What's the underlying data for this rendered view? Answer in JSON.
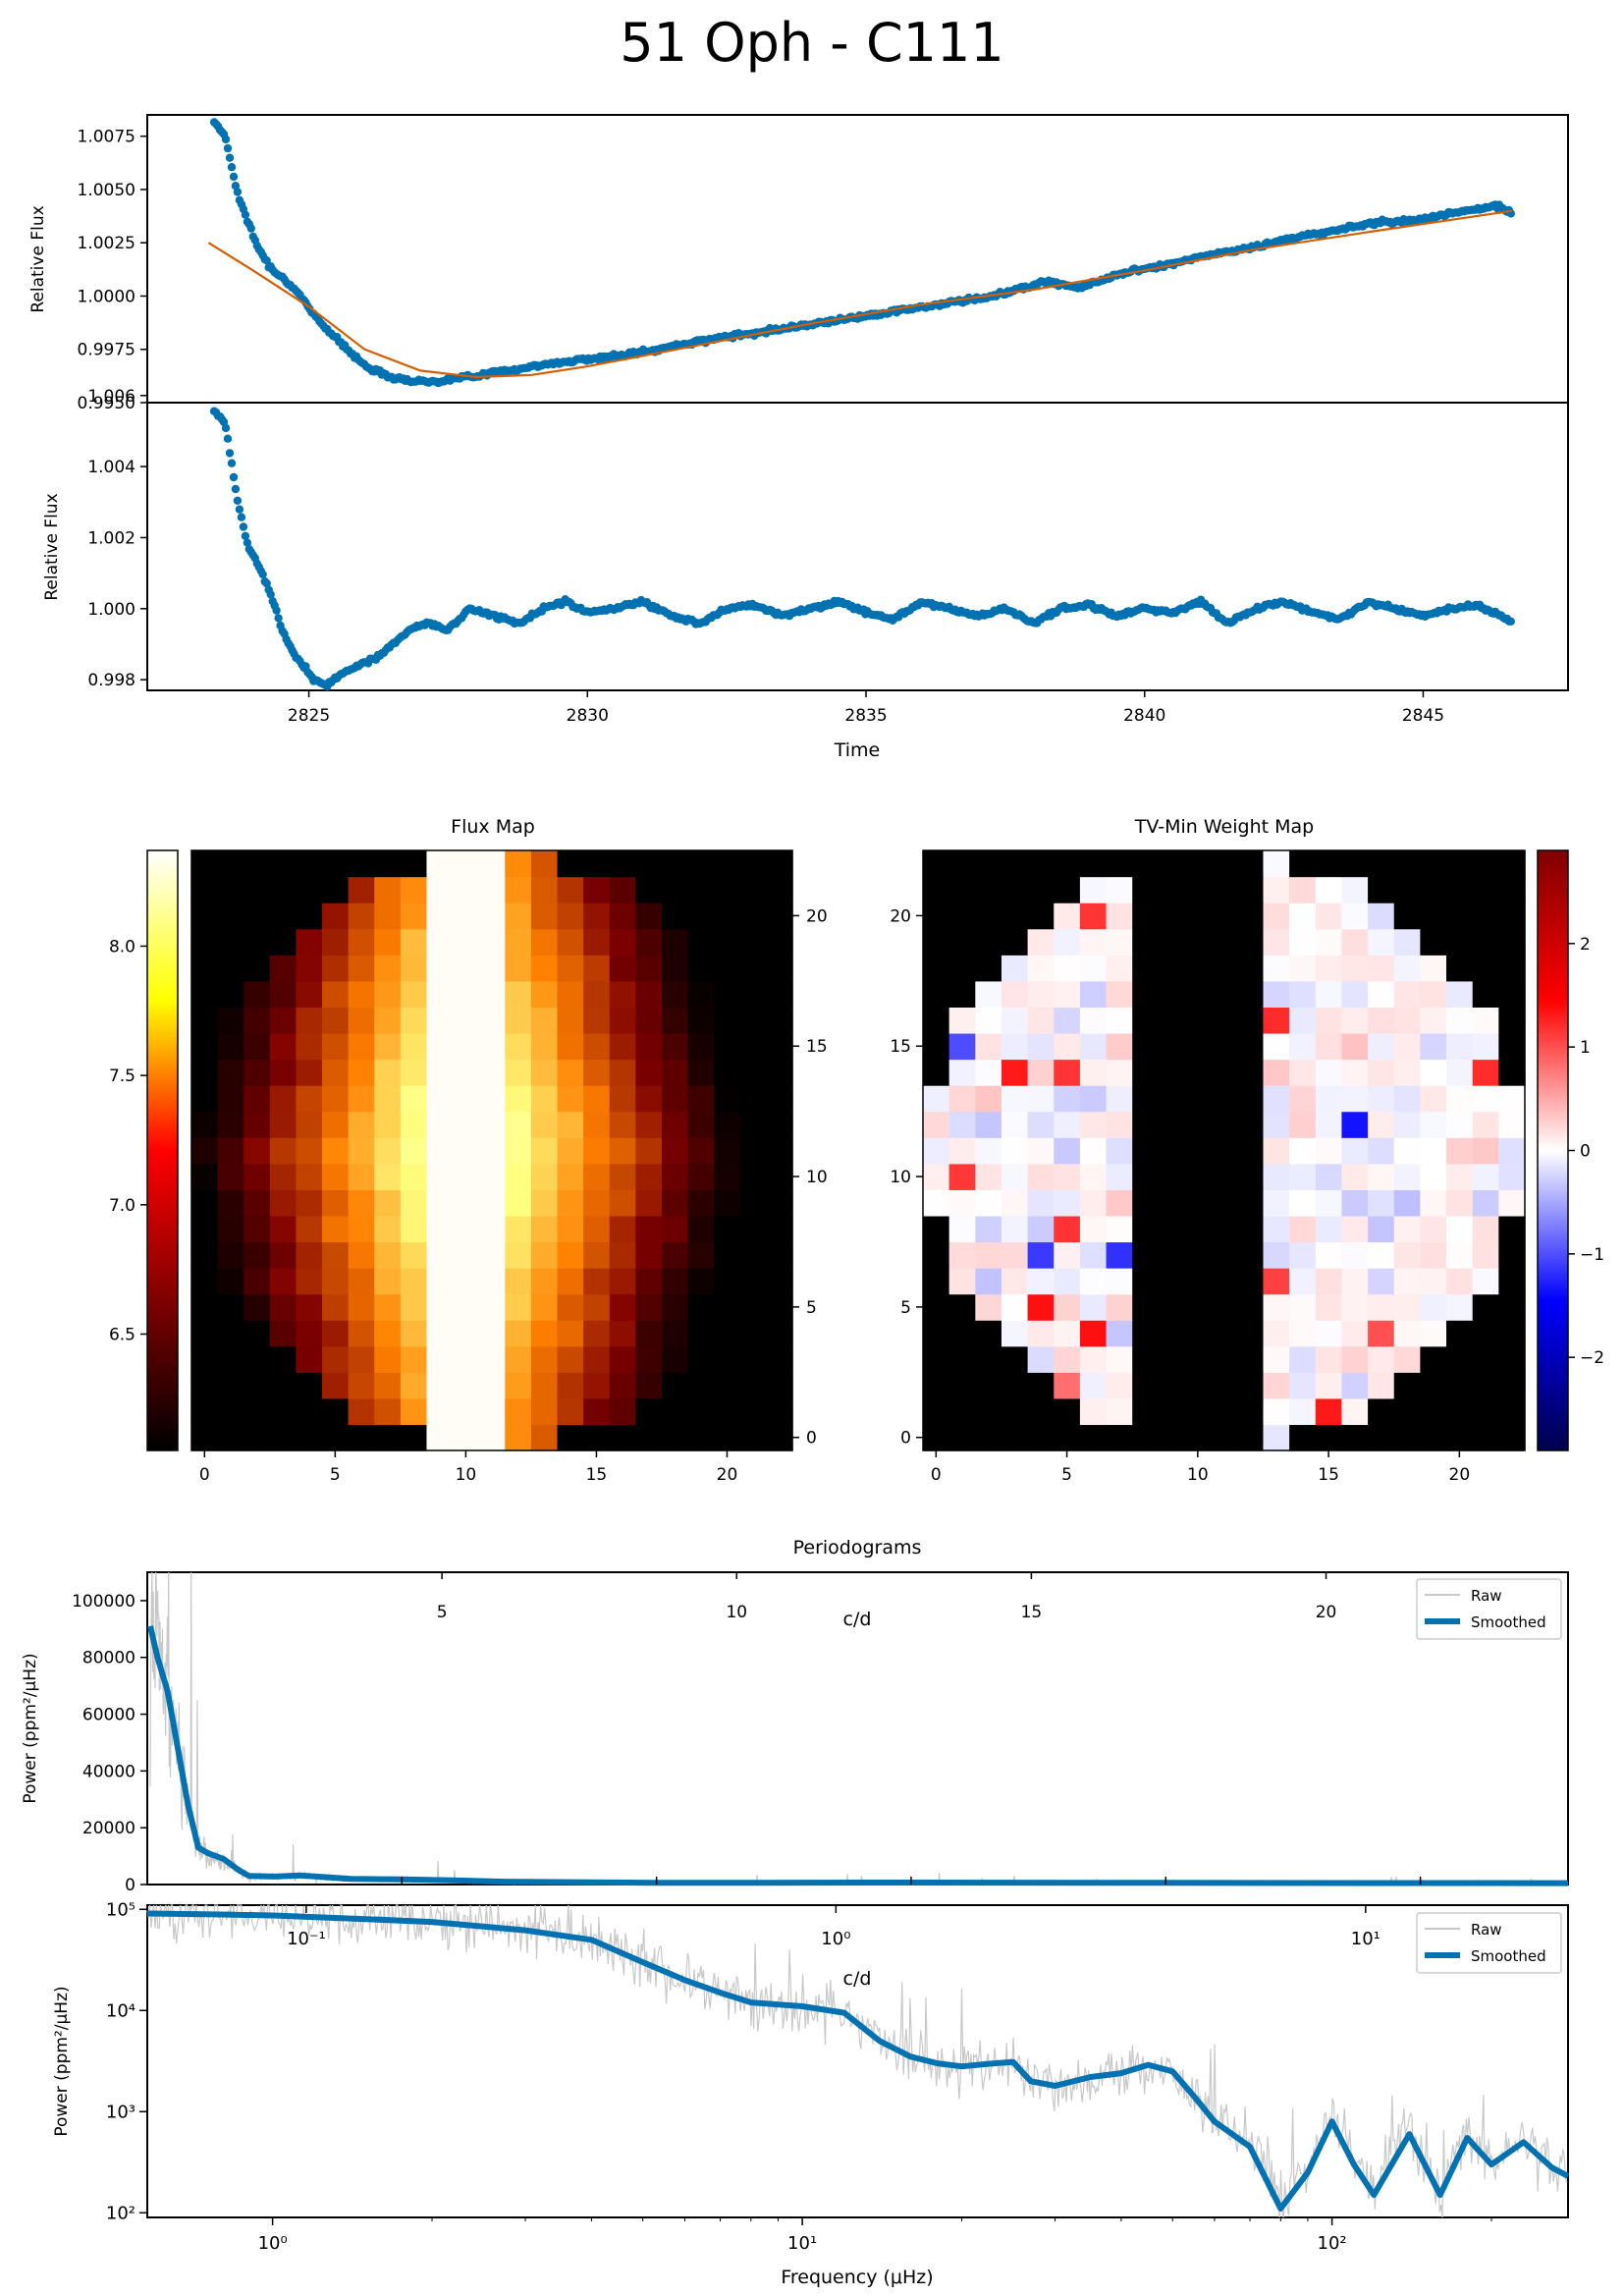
{
  "title": "51 Oph - C111",
  "colors": {
    "series": "#0072b2",
    "trend": "#d55e00",
    "raw": "#c8c8c8",
    "axis": "#000000"
  },
  "chart_data": [
    {
      "type": "scatter",
      "panel": "raw-lightcurve",
      "ylabel": "Relative Flux",
      "xlim": [
        2822.1,
        2847.6
      ],
      "ylim": [
        0.995,
        1.0085
      ],
      "yticks": [
        "0.9950",
        "0.9975",
        "1.0000",
        "1.0025",
        "1.0050",
        "1.0075"
      ],
      "yticks_values": [
        0.995,
        0.9975,
        1.0,
        1.0025,
        1.005,
        1.0075
      ],
      "series": [
        {
          "values": [
            [
              2823.3,
              1.0082
            ],
            [
              2823.5,
              1.0075
            ],
            [
              2823.7,
              1.005
            ],
            [
              2823.9,
              1.0035
            ],
            [
              2824.1,
              1.0022
            ],
            [
              2824.3,
              1.0014
            ],
            [
              2824.6,
              1.0007
            ],
            [
              2824.9,
              0.9998
            ],
            [
              2825.2,
              0.9988
            ],
            [
              2825.5,
              0.998
            ],
            [
              2825.8,
              0.9972
            ],
            [
              2826.1,
              0.9966
            ],
            [
              2826.5,
              0.9962
            ],
            [
              2826.9,
              0.996
            ],
            [
              2827.3,
              0.996
            ],
            [
              2827.8,
              0.9962
            ],
            [
              2828.3,
              0.9964
            ],
            [
              2828.8,
              0.9966
            ],
            [
              2829.3,
              0.9968
            ],
            [
              2829.8,
              0.997
            ],
            [
              2830.3,
              0.9971
            ],
            [
              2830.8,
              0.9973
            ],
            [
              2831.3,
              0.9975
            ],
            [
              2831.8,
              0.9978
            ],
            [
              2832.3,
              0.998
            ],
            [
              2832.8,
              0.9982
            ],
            [
              2833.3,
              0.9984
            ],
            [
              2833.8,
              0.9986
            ],
            [
              2834.3,
              0.9988
            ],
            [
              2834.8,
              0.999
            ],
            [
              2835.3,
              0.9992
            ],
            [
              2835.8,
              0.9994
            ],
            [
              2836.3,
              0.9996
            ],
            [
              2836.8,
              0.9998
            ],
            [
              2837.3,
              1.0
            ],
            [
              2837.8,
              1.0004
            ],
            [
              2838.3,
              1.0007
            ],
            [
              2838.8,
              1.0004
            ],
            [
              2839.3,
              1.0008
            ],
            [
              2839.8,
              1.0012
            ],
            [
              2840.3,
              1.0014
            ],
            [
              2840.8,
              1.0017
            ],
            [
              2841.3,
              1.002
            ],
            [
              2841.8,
              1.0022
            ],
            [
              2842.3,
              1.0025
            ],
            [
              2842.8,
              1.0028
            ],
            [
              2843.3,
              1.003
            ],
            [
              2843.8,
              1.0033
            ],
            [
              2844.3,
              1.0035
            ],
            [
              2844.8,
              1.0035
            ],
            [
              2845.3,
              1.0038
            ],
            [
              2845.8,
              1.004
            ],
            [
              2846.3,
              1.0042
            ],
            [
              2846.6,
              1.0039
            ]
          ]
        }
      ],
      "trend": [
        [
          2823.2,
          1.0025
        ],
        [
          2824.0,
          1.0012
        ],
        [
          2825.0,
          0.9995
        ],
        [
          2826.0,
          0.9975
        ],
        [
          2827.0,
          0.9965
        ],
        [
          2828.0,
          0.9962
        ],
        [
          2829.0,
          0.9963
        ],
        [
          2830.0,
          0.9967
        ],
        [
          2832.0,
          0.9977
        ],
        [
          2834.0,
          0.9987
        ],
        [
          2836.0,
          0.9996
        ],
        [
          2838.0,
          1.0003
        ],
        [
          2840.0,
          1.0012
        ],
        [
          2842.0,
          1.0022
        ],
        [
          2844.0,
          1.003
        ],
        [
          2846.6,
          1.004
        ]
      ]
    },
    {
      "type": "scatter",
      "panel": "detrended-lightcurve",
      "ylabel": "Relative Flux",
      "xlabel": "Time",
      "xlim": [
        2822.1,
        2847.6
      ],
      "ylim": [
        0.9977,
        1.0058
      ],
      "xticks": [
        2825,
        2830,
        2835,
        2840,
        2845
      ],
      "yticks": [
        "0.998",
        "1.000",
        "1.002",
        "1.004",
        "1.006"
      ],
      "yticks_values": [
        0.998,
        1.0,
        1.002,
        1.004,
        1.006
      ],
      "series": [
        {
          "values": [
            [
              2823.3,
              1.0056
            ],
            [
              2823.5,
              1.0052
            ],
            [
              2823.7,
              1.0032
            ],
            [
              2823.9,
              1.0018
            ],
            [
              2824.1,
              1.0012
            ],
            [
              2824.3,
              1.0005
            ],
            [
              2824.5,
              0.9995
            ],
            [
              2824.7,
              0.9988
            ],
            [
              2824.9,
              0.9984
            ],
            [
              2825.1,
              0.998
            ],
            [
              2825.3,
              0.9978
            ],
            [
              2825.6,
              0.9982
            ],
            [
              2825.9,
              0.9984
            ],
            [
              2826.2,
              0.9986
            ],
            [
              2826.5,
              0.999
            ],
            [
              2826.8,
              0.9994
            ],
            [
              2827.1,
              0.9996
            ],
            [
              2827.5,
              0.9994
            ],
            [
              2827.9,
              1.0
            ],
            [
              2828.3,
              0.9998
            ],
            [
              2828.8,
              0.9996
            ],
            [
              2829.2,
              1.0
            ],
            [
              2829.6,
              1.0002
            ],
            [
              2830.0,
              0.9999
            ],
            [
              2830.5,
              1.0
            ],
            [
              2831.0,
              1.0002
            ],
            [
              2831.5,
              0.9998
            ],
            [
              2832.0,
              0.9996
            ],
            [
              2832.5,
              1.0
            ],
            [
              2833.0,
              1.0001
            ],
            [
              2833.5,
              0.9998
            ],
            [
              2834.0,
              1.0
            ],
            [
              2834.5,
              1.0002
            ],
            [
              2835.0,
              0.9999
            ],
            [
              2835.5,
              0.9997
            ],
            [
              2836.0,
              1.0002
            ],
            [
              2836.5,
              1.0
            ],
            [
              2837.0,
              0.9998
            ],
            [
              2837.5,
              1.0
            ],
            [
              2838.0,
              0.9996
            ],
            [
              2838.5,
              1.0
            ],
            [
              2839.0,
              1.0001
            ],
            [
              2839.5,
              0.9998
            ],
            [
              2840.0,
              1.0
            ],
            [
              2840.5,
              0.9999
            ],
            [
              2841.0,
              1.0002
            ],
            [
              2841.5,
              0.9996
            ],
            [
              2842.0,
              1.0
            ],
            [
              2842.5,
              1.0002
            ],
            [
              2843.0,
              0.9999
            ],
            [
              2843.5,
              0.9997
            ],
            [
              2844.0,
              1.0002
            ],
            [
              2844.5,
              1.0
            ],
            [
              2845.0,
              0.9998
            ],
            [
              2845.5,
              1.0
            ],
            [
              2846.0,
              1.0001
            ],
            [
              2846.6,
              0.9996
            ]
          ]
        }
      ]
    },
    {
      "type": "heatmap",
      "panel": "flux-map",
      "title": "Flux Map",
      "xticks": [
        0,
        5,
        10,
        15,
        20
      ],
      "yticks": [
        0,
        5,
        10,
        15,
        20
      ],
      "colorbar_ticks": [
        "6.5",
        "7.0",
        "7.5",
        "8.0"
      ],
      "colorbar_tick_values": [
        6.5,
        7.0,
        7.5,
        8.0
      ],
      "clim": [
        6.05,
        8.37
      ],
      "grid_size": 23,
      "saturated_columns": [
        9,
        10,
        11
      ]
    },
    {
      "type": "heatmap",
      "panel": "weight-map",
      "title": "TV-Min Weight Map",
      "xticks": [
        0,
        5,
        10,
        15,
        20
      ],
      "yticks": [
        0,
        5,
        10,
        15,
        20
      ],
      "colorbar_ticks": [
        "−2",
        "−1",
        "0",
        "1",
        "2"
      ],
      "colorbar_tick_values": [
        -2,
        -1,
        0,
        1,
        2
      ],
      "clim": [
        -2.9,
        2.9
      ],
      "grid_size": 23,
      "masked_columns": [
        8,
        9,
        10,
        11,
        12
      ]
    },
    {
      "type": "line",
      "panel": "periodogram-linear",
      "title": "Periodograms",
      "ylabel": "Power (ppm²/μHz)",
      "top_axis_label": "c/d",
      "top_ticks": [
        5,
        10,
        15,
        20
      ],
      "xlim_uhz": [
        0,
        279
      ],
      "ylim": [
        0,
        110000
      ],
      "yticks": [
        0,
        20000,
        40000,
        60000,
        80000,
        100000
      ],
      "legend": [
        "Raw",
        "Smoothed"
      ],
      "legend_position": "top-right",
      "series": [
        {
          "name": "Smoothed",
          "values": [
            [
              0.58,
              91000
            ],
            [
              2,
              80000
            ],
            [
              4,
              68000
            ],
            [
              6,
              48000
            ],
            [
              8,
              28000
            ],
            [
              10,
              13000
            ],
            [
              12,
              11000
            ],
            [
              15,
              9000
            ],
            [
              18,
              5000
            ],
            [
              20,
              3000
            ],
            [
              25,
              2800
            ],
            [
              30,
              3200
            ],
            [
              40,
              2000
            ],
            [
              50,
              1800
            ],
            [
              60,
              1500
            ],
            [
              70,
              1000
            ],
            [
              100,
              600
            ],
            [
              150,
              700
            ],
            [
              200,
              600
            ],
            [
              279,
              500
            ]
          ]
        }
      ]
    },
    {
      "type": "line",
      "panel": "periodogram-log",
      "ylabel": "Power (ppm²/μHz)",
      "xlabel": "Frequency (μHz)",
      "xscale": "log",
      "yscale": "log",
      "xlim": [
        0.58,
        279
      ],
      "ylim": [
        90,
        110000
      ],
      "xticks": [
        "10⁰",
        "10¹",
        "10²"
      ],
      "xticks_values": [
        1,
        10,
        100
      ],
      "yticks": [
        "10²",
        "10³",
        "10⁴",
        "10⁵"
      ],
      "yticks_values": [
        100,
        1000,
        10000,
        100000
      ],
      "top_axis_label": "c/d",
      "top_ticks": [
        "10⁻¹",
        "10⁰",
        "10¹"
      ],
      "top_ticks_values": [
        0.1,
        1,
        10
      ],
      "legend": [
        "Raw",
        "Smoothed"
      ],
      "legend_position": "top-right",
      "series": [
        {
          "name": "Smoothed",
          "values": [
            [
              0.58,
              91000
            ],
            [
              0.8,
              89000
            ],
            [
              1.0,
              87000
            ],
            [
              1.5,
              80000
            ],
            [
              2.0,
              75000
            ],
            [
              3.0,
              62000
            ],
            [
              4.0,
              50000
            ],
            [
              5.0,
              30000
            ],
            [
              6.0,
              20000
            ],
            [
              7.0,
              15000
            ],
            [
              8.0,
              12000
            ],
            [
              10.0,
              11000
            ],
            [
              12.0,
              9500
            ],
            [
              14.0,
              5000
            ],
            [
              16.0,
              3500
            ],
            [
              18.0,
              3000
            ],
            [
              20.0,
              2800
            ],
            [
              23.0,
              3000
            ],
            [
              25.0,
              3100
            ],
            [
              27.0,
              2000
            ],
            [
              30.0,
              1800
            ],
            [
              35.0,
              2200
            ],
            [
              40.0,
              2400
            ],
            [
              45.0,
              2900
            ],
            [
              50.0,
              2500
            ],
            [
              55.0,
              1400
            ],
            [
              60.0,
              800
            ],
            [
              70.0,
              450
            ],
            [
              80.0,
              110
            ],
            [
              90.0,
              250
            ],
            [
              100.0,
              800
            ],
            [
              110.0,
              300
            ],
            [
              120.0,
              150
            ],
            [
              140.0,
              600
            ],
            [
              160.0,
              150
            ],
            [
              180.0,
              550
            ],
            [
              200.0,
              300
            ],
            [
              230.0,
              500
            ],
            [
              260.0,
              280
            ],
            [
              279.0,
              230
            ]
          ]
        }
      ]
    }
  ]
}
